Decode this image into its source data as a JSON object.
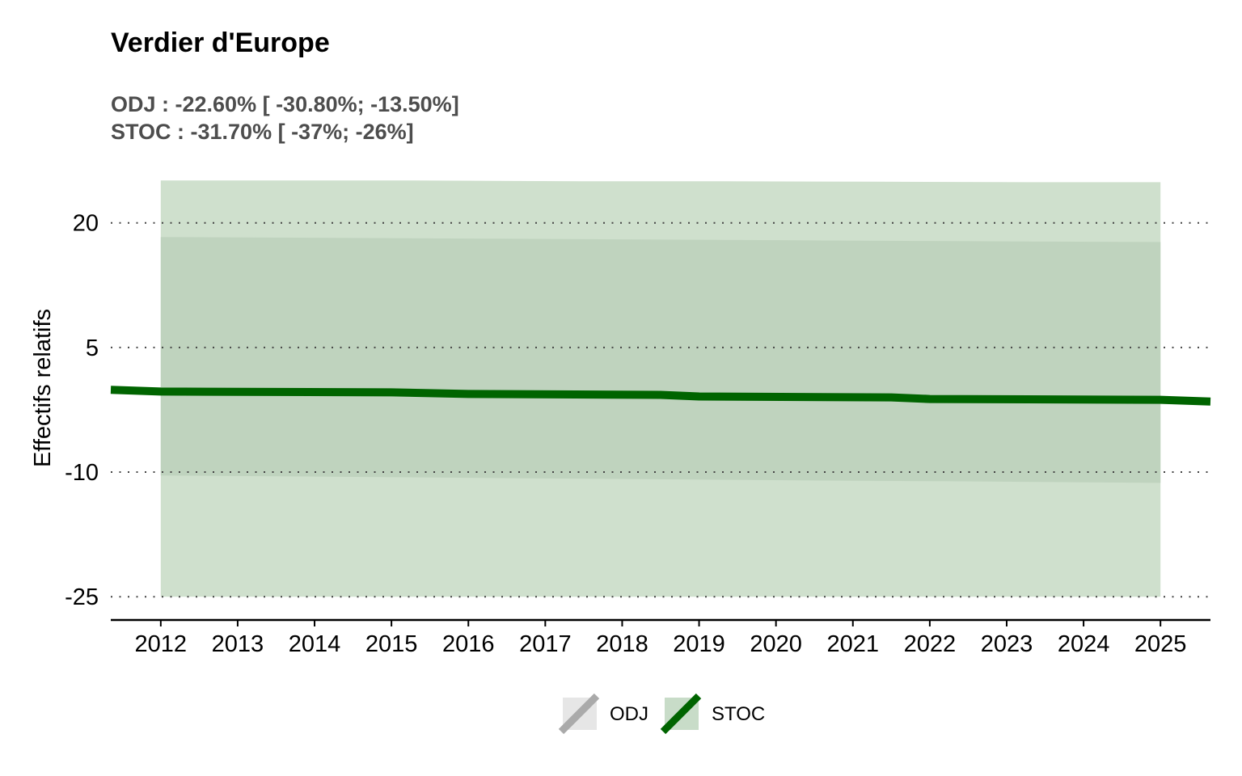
{
  "chart_data": {
    "type": "line",
    "title": "Verdier d'Europe",
    "subtitle_lines": [
      "ODJ : -22.60% [ -30.80%; -13.50%]",
      "STOC : -31.70% [ -37%; -26%]"
    ],
    "xlabel": "",
    "ylabel": "Effectifs relatifs",
    "x": [
      2012,
      2013,
      2014,
      2015,
      2016,
      2017,
      2018,
      2019,
      2020,
      2021,
      2022,
      2023,
      2024,
      2025
    ],
    "xlim": [
      2011.35,
      2025.65
    ],
    "ylim": [
      -27.8,
      26.2
    ],
    "yticks": [
      20,
      5,
      -10,
      -25
    ],
    "grid": "horizontal dotted",
    "legend": "bottom",
    "series": [
      {
        "name": "STOC",
        "color": "#006400",
        "line": {
          "x": [
            2011.35,
            2012,
            2015,
            2016,
            2018.5,
            2019,
            2021.5,
            2022,
            2025,
            2025.65
          ],
          "y": [
            -0.1,
            -0.3,
            -0.4,
            -0.6,
            -0.7,
            -0.9,
            -1.0,
            -1.2,
            -1.3,
            -1.5
          ]
        },
        "band_outer": {
          "x": [
            2012,
            2013.3,
            2015.3,
            2017.5,
            2019.3,
            2021.3,
            2023.3,
            2025
          ],
          "lower": [
            -25.0,
            -25.0,
            -25.0,
            -25.0,
            -25.0,
            -25.0,
            -25.0,
            -25.0
          ],
          "upper": [
            25.1,
            25.1,
            25.1,
            25.0,
            25.0,
            24.95,
            24.9,
            24.9
          ]
        },
        "band_inner": {
          "x": [
            2012,
            2014.2,
            2016.2,
            2018.3,
            2020.3,
            2022.3,
            2025
          ],
          "lower": [
            -10.4,
            -10.55,
            -10.7,
            -10.85,
            -11.0,
            -11.1,
            -11.3
          ],
          "upper": [
            18.3,
            18.2,
            18.1,
            18.0,
            17.9,
            17.8,
            17.7
          ]
        }
      }
    ],
    "legend_entries": [
      {
        "label": "ODJ",
        "line_color": "#aaaaaa",
        "fill_color": "#e6e6e6"
      },
      {
        "label": "STOC",
        "line_color": "#006400",
        "fill_color": "#c8dcc8"
      }
    ],
    "colors": {
      "band_outer": "#cfe0cd",
      "band_inner": "#bfd3be",
      "grid": "#444444",
      "axis": "#000000"
    }
  }
}
